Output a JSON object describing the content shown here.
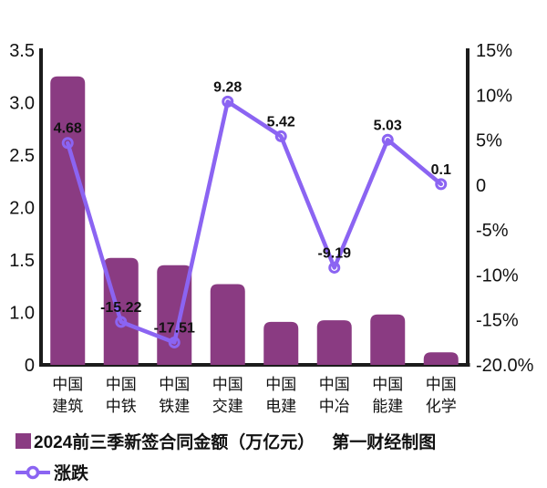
{
  "chart_data": {
    "type": "bar",
    "subtype": "bar-line-combo",
    "categories": [
      "中国建筑",
      "中国中铁",
      "中国铁建",
      "中国交建",
      "中国电建",
      "中国中冶",
      "中国能建",
      "中国化学"
    ],
    "category_label_lines": [
      [
        "中国",
        "建筑"
      ],
      [
        "中国",
        "中铁"
      ],
      [
        "中国",
        "铁建"
      ],
      [
        "中国",
        "交建"
      ],
      [
        "中国",
        "电建"
      ],
      [
        "中国",
        "中冶"
      ],
      [
        "中国",
        "能建"
      ],
      [
        "中国",
        "化学"
      ]
    ],
    "series": [
      {
        "name": "2024前三季新签合同金额（万亿元）",
        "type": "bar",
        "axis": "left",
        "values": [
          3.25,
          1.52,
          1.45,
          1.27,
          0.82,
          0.85,
          0.96,
          0.24
        ]
      },
      {
        "name": "涨跌",
        "type": "line",
        "axis": "right",
        "values": [
          4.68,
          -15.22,
          -17.51,
          9.28,
          5.42,
          -9.19,
          5.03,
          0.1
        ],
        "point_labels": [
          "4.68",
          "-15.22",
          "-17.51",
          "9.28",
          "5.42",
          "-9.19",
          "5.03",
          "0.1"
        ]
      }
    ],
    "left_axis": {
      "tick_labels": [
        "3.5",
        "3.0",
        "2.5",
        "2.0",
        "1.5",
        "1.0",
        "0"
      ],
      "tick_values": [
        3.5,
        3.0,
        2.5,
        2.0,
        1.5,
        1.0,
        0
      ],
      "spacing": "even-label-spacing"
    },
    "right_axis": {
      "tick_labels": [
        "15%",
        "10%",
        "5%",
        "0",
        "-5%",
        "-10%",
        "-15%",
        "-20.0%"
      ],
      "tick_values": [
        15,
        10,
        5,
        0,
        -5,
        -10,
        -15,
        -20
      ],
      "min": -20,
      "max": 15
    },
    "grid": false,
    "legend_position": "bottom-left"
  },
  "legend": {
    "bar_label": "2024前三季新签合同金额（万亿元）",
    "credit": "第一财经制图",
    "line_label": "涨跌"
  },
  "colors": {
    "bar": "#8a3b82",
    "line": "#8b64f2",
    "axis": "#1c1c1c",
    "text": "#111111"
  }
}
